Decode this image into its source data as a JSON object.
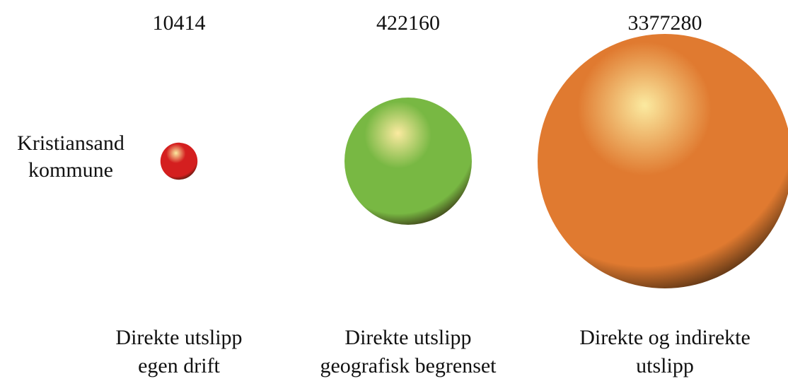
{
  "chart_data": {
    "type": "bubble",
    "row_label": [
      "Kristiansand",
      "kommune"
    ],
    "categories": [
      [
        "Direkte utslipp",
        "egen drift"
      ],
      [
        "Direkte utslipp",
        "geografisk begrenset"
      ],
      [
        "Direkte og indirekte",
        "utslipp"
      ]
    ],
    "values": [
      10414,
      422160,
      3377280
    ],
    "colors": [
      "#d41f1f",
      "#78b843",
      "#e07a30"
    ],
    "size_scale": "volume"
  }
}
